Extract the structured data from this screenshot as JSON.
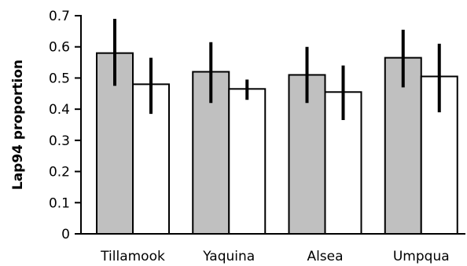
{
  "chart_data": {
    "type": "bar",
    "xlabel": "",
    "ylabel": "Lap94 proportion",
    "ylim": [
      0,
      0.7
    ],
    "yticks": [
      "0",
      "0.1",
      "0.2",
      "0.3",
      "0.4",
      "0.5",
      "0.6",
      "0.7"
    ],
    "categories": [
      "Tillamook",
      "Yaquina",
      "Alsea",
      "Umpqua"
    ],
    "grid": false,
    "legend": "none",
    "series": [
      {
        "color": "#c0c0c0",
        "values": [
          0.58,
          0.52,
          0.51,
          0.565
        ],
        "err_low": [
          0.475,
          0.42,
          0.42,
          0.47
        ],
        "err_high": [
          0.69,
          0.615,
          0.6,
          0.655
        ]
      },
      {
        "color": "#ffffff",
        "values": [
          0.48,
          0.465,
          0.455,
          0.505
        ],
        "err_low": [
          0.385,
          0.43,
          0.365,
          0.39
        ],
        "err_high": [
          0.565,
          0.495,
          0.54,
          0.61
        ]
      }
    ]
  }
}
